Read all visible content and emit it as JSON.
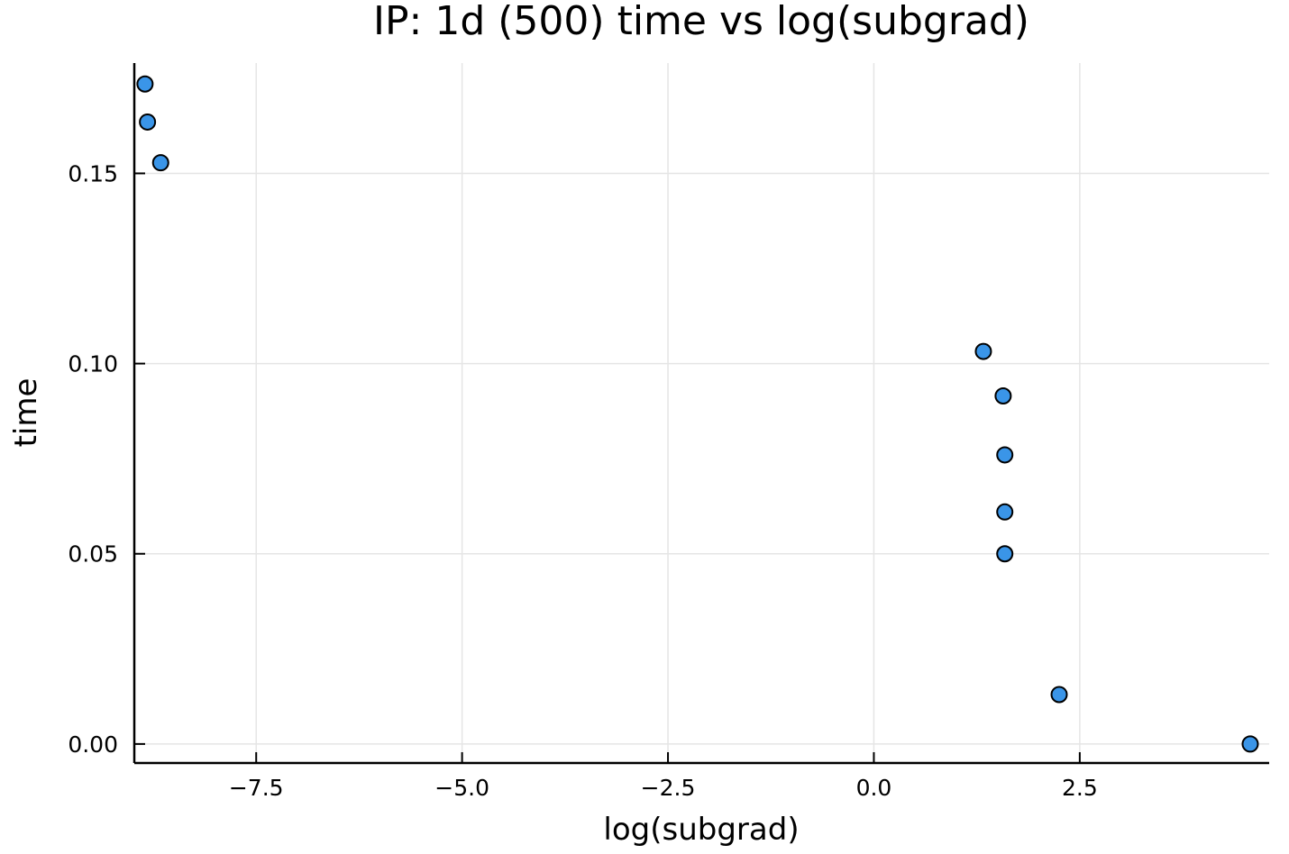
{
  "chart_data": {
    "type": "scatter",
    "title": "IP: 1d (500) time vs log(subgrad)",
    "xlabel": "log(subgrad)",
    "ylabel": "time",
    "xlim": [
      -8.98,
      4.8
    ],
    "ylim": [
      -0.005,
      0.179
    ],
    "xticks": [
      -7.5,
      -5.0,
      -2.5,
      0.0,
      2.5
    ],
    "xtick_labels": [
      "−7.5",
      "−5.0",
      "−2.5",
      "0.0",
      "2.5"
    ],
    "yticks": [
      0.0,
      0.05,
      0.1,
      0.15
    ],
    "ytick_labels": [
      "0.00",
      "0.05",
      "0.10",
      "0.15"
    ],
    "grid": true,
    "legend": "none",
    "marker_color": "#3a95e8",
    "points": [
      {
        "x": -8.85,
        "y": 0.1735
      },
      {
        "x": -8.82,
        "y": 0.1635
      },
      {
        "x": -8.66,
        "y": 0.1528
      },
      {
        "x": 1.33,
        "y": 0.1032
      },
      {
        "x": 1.57,
        "y": 0.0915
      },
      {
        "x": 1.59,
        "y": 0.076
      },
      {
        "x": 1.59,
        "y": 0.061
      },
      {
        "x": 1.59,
        "y": 0.05
      },
      {
        "x": 2.25,
        "y": 0.013
      },
      {
        "x": 4.57,
        "y": 0.0
      }
    ]
  }
}
